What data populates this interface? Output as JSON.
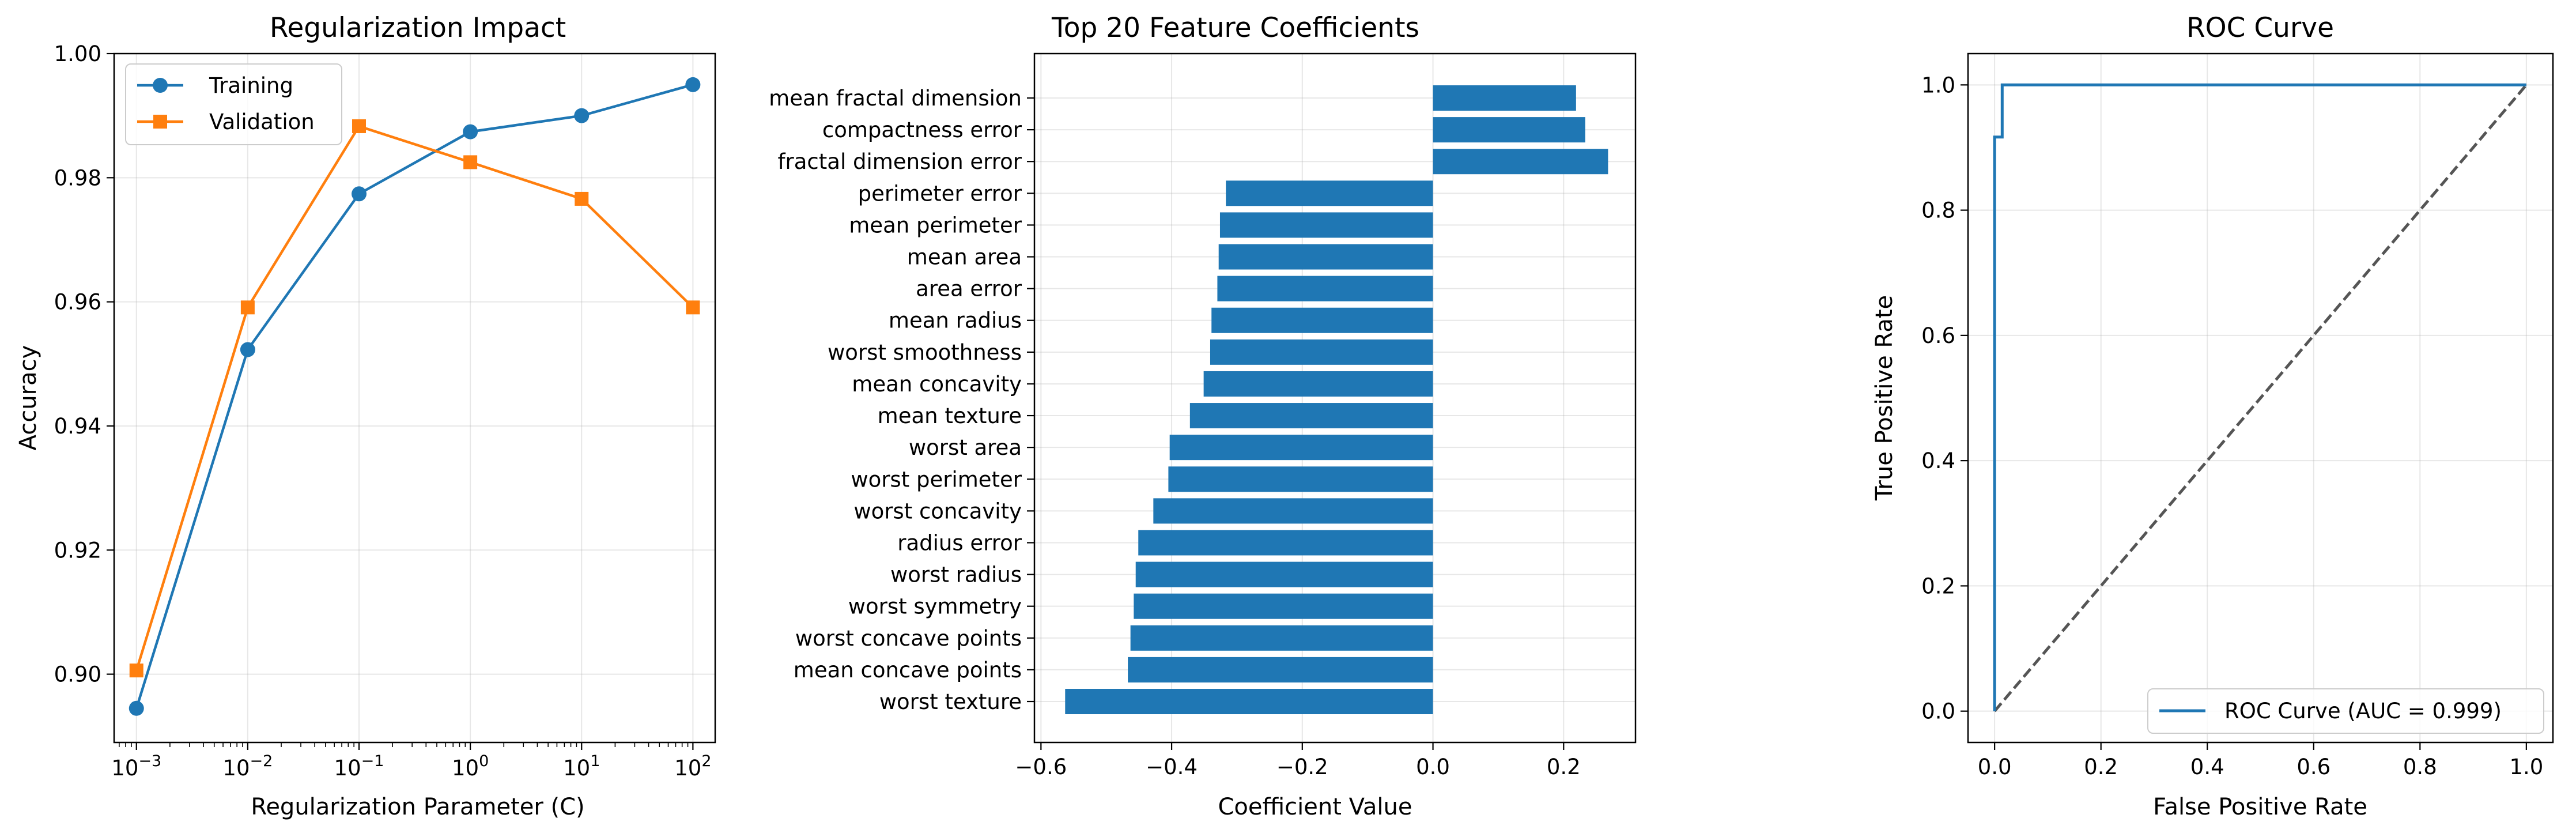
{
  "chart_data": [
    {
      "type": "line",
      "title": "Regularization Impact",
      "xlabel": "Regularization Parameter (C)",
      "ylabel": "Accuracy",
      "xscale": "log",
      "xlim": [
        0.00063,
        158.5
      ],
      "ylim": [
        0.889,
        1.0
      ],
      "grid": true,
      "legend_position": "upper-left",
      "x": [
        0.001,
        0.01,
        0.1,
        1,
        10,
        100
      ],
      "x_tick_labels": [
        {
          "base": "10",
          "exp": "−3"
        },
        {
          "base": "10",
          "exp": "−2"
        },
        {
          "base": "10",
          "exp": "−1"
        },
        {
          "base": "10",
          "exp": "0"
        },
        {
          "base": "10",
          "exp": "1"
        },
        {
          "base": "10",
          "exp": "2"
        }
      ],
      "y_ticks": [
        0.9,
        0.92,
        0.94,
        0.96,
        0.98,
        1.0
      ],
      "y_tick_labels": [
        "0.90",
        "0.92",
        "0.94",
        "0.96",
        "0.98",
        "1.00"
      ],
      "series": [
        {
          "name": "Training",
          "color": "#1f77b4",
          "marker": "circle",
          "values": [
            0.8945,
            0.9523,
            0.9774,
            0.9874,
            0.99,
            0.995
          ]
        },
        {
          "name": "Validation",
          "color": "#ff7f0e",
          "marker": "square",
          "values": [
            0.9006,
            0.9591,
            0.9883,
            0.9825,
            0.9766,
            0.9591
          ]
        }
      ]
    },
    {
      "type": "bar",
      "orientation": "horizontal",
      "title": "Top 20 Feature Coefficients",
      "xlabel": "Coefficient Value",
      "ylabel": "",
      "xlim": [
        -0.61,
        0.31
      ],
      "grid": true,
      "color": "#1f77b4",
      "x_ticks": [
        -0.6,
        -0.4,
        -0.2,
        0.0,
        0.2
      ],
      "x_tick_labels": [
        "−0.6",
        "−0.4",
        "−0.2",
        "0.0",
        "0.2"
      ],
      "categories": [
        "mean fractal dimension",
        "compactness error",
        "fractal dimension error",
        "perimeter error",
        "mean perimeter",
        "mean area",
        "area error",
        "mean radius",
        "worst smoothness",
        "mean concavity",
        "mean texture",
        "worst area",
        "worst perimeter",
        "worst concavity",
        "radius error",
        "worst radius",
        "worst symmetry",
        "worst concave points",
        "mean concave points",
        "worst texture"
      ],
      "values": [
        0.219,
        0.233,
        0.268,
        -0.317,
        -0.326,
        -0.328,
        -0.33,
        -0.339,
        -0.341,
        -0.351,
        -0.372,
        -0.403,
        -0.405,
        -0.428,
        -0.451,
        -0.455,
        -0.458,
        -0.463,
        -0.467,
        -0.563
      ]
    },
    {
      "type": "line",
      "title": "ROC Curve",
      "xlabel": "False Positive Rate",
      "ylabel": "True Positive Rate",
      "xlim": [
        -0.05,
        1.05
      ],
      "ylim": [
        -0.05,
        1.05
      ],
      "grid": true,
      "legend_position": "lower-right",
      "ticks": [
        0.0,
        0.2,
        0.4,
        0.6,
        0.8,
        1.0
      ],
      "tick_labels": [
        "0.0",
        "0.2",
        "0.4",
        "0.6",
        "0.8",
        "1.0"
      ],
      "series": [
        {
          "name": "ROC Curve (AUC = 0.999)",
          "color": "#1f77b4",
          "style": "solid",
          "x": [
            0.0,
            0.0,
            0.0143,
            0.0143,
            0.0143,
            1.0
          ],
          "y": [
            0.0,
            0.9167,
            0.9167,
            1.0,
            1.0,
            1.0
          ]
        },
        {
          "name": "",
          "color": "#555555",
          "style": "dashed",
          "x": [
            0.0,
            1.0
          ],
          "y": [
            0.0,
            1.0
          ]
        }
      ]
    }
  ]
}
